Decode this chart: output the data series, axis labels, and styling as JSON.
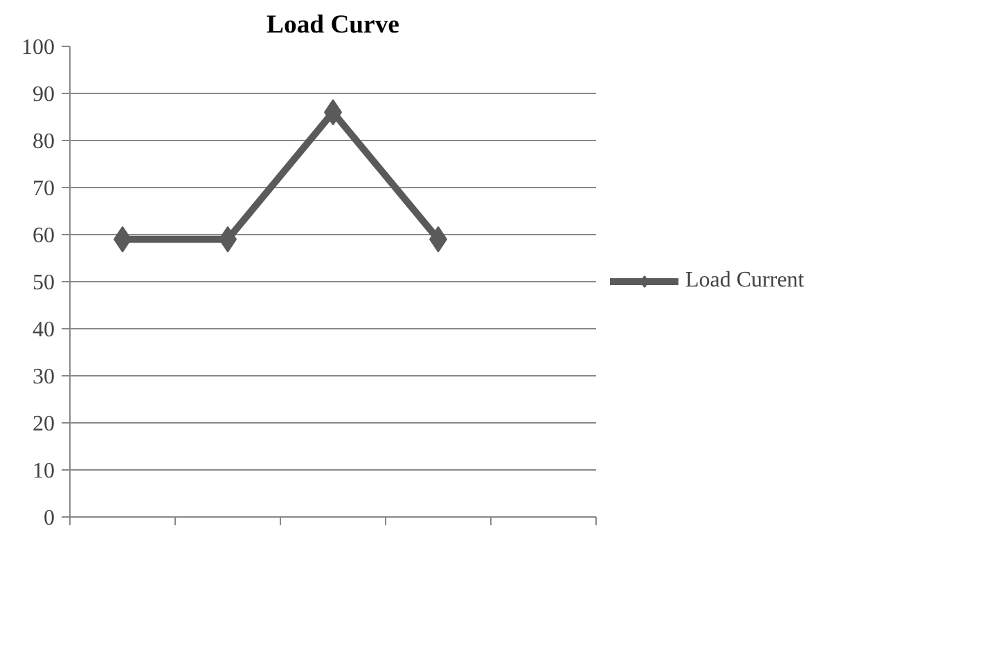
{
  "chart_data": {
    "type": "line",
    "title": "Load Curve",
    "categories": [
      null,
      null,
      null,
      null,
      null
    ],
    "series": [
      {
        "name": "Load Current",
        "color": "#5a5a5a",
        "values": [
          59,
          59,
          86,
          59,
          null
        ]
      }
    ],
    "ylim": [
      0,
      100
    ],
    "yticks": [
      0,
      10,
      20,
      30,
      40,
      50,
      60,
      70,
      80,
      90,
      100
    ],
    "grid": "y",
    "legend": "right",
    "marker": "diamond",
    "line_style": "solid"
  }
}
